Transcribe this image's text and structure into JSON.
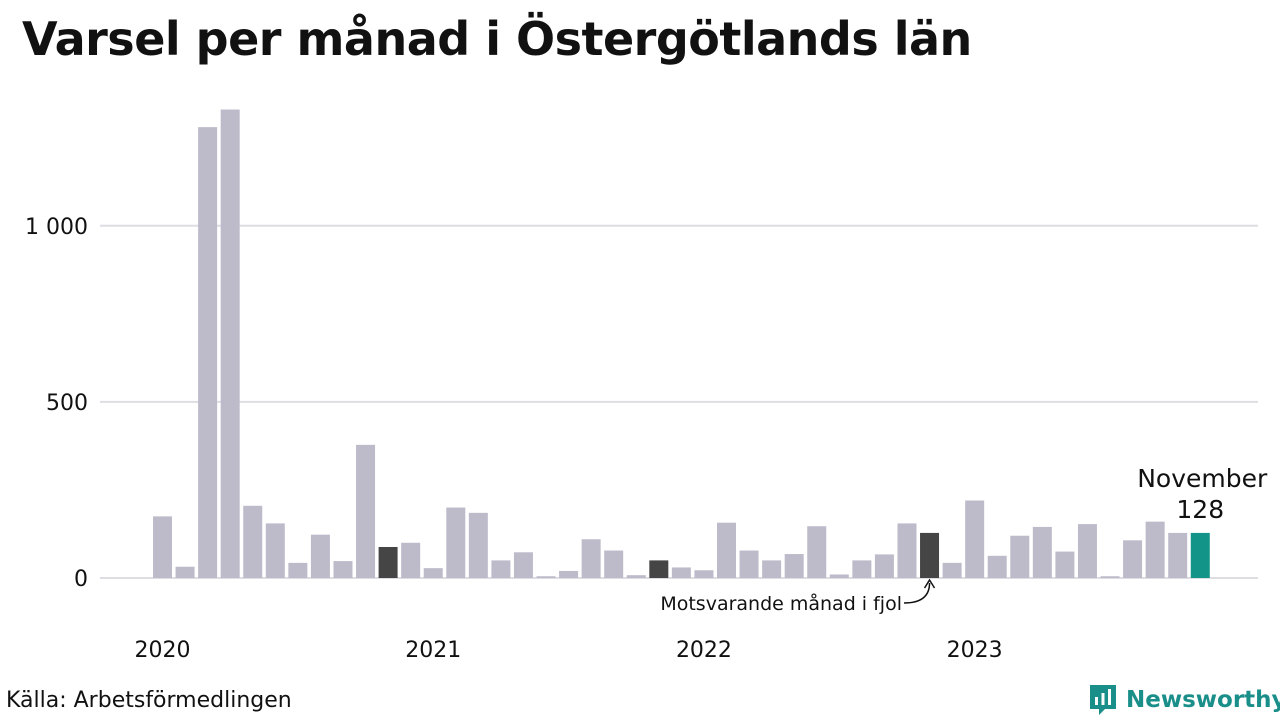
{
  "title": "Varsel per månad i Östergötlands län",
  "source": "Källa: Arbetsförmedlingen",
  "logo": {
    "text": "Newsworthy",
    "icon": "bar-chart-badge-icon",
    "color": "#1a8f8a"
  },
  "colors": {
    "default": "#bdbbca",
    "highlight": "#454545",
    "current": "#139488",
    "grid": "#dddde3"
  },
  "chart_data": {
    "type": "bar",
    "title": "Varsel per månad i Östergötlands län",
    "xlabel": "",
    "ylabel": "",
    "ylim": [
      0,
      1340
    ],
    "yticks": [
      0,
      500,
      1000
    ],
    "ytick_labels": [
      "0",
      "500",
      "1 000"
    ],
    "grid": true,
    "year_labels": [
      {
        "label": "2020",
        "index": 0
      },
      {
        "label": "2021",
        "index": 12
      },
      {
        "label": "2022",
        "index": 24
      },
      {
        "label": "2023",
        "index": 36
      }
    ],
    "values": [
      175,
      32,
      1280,
      1330,
      205,
      155,
      43,
      123,
      48,
      378,
      88,
      100,
      28,
      200,
      185,
      50,
      73,
      5,
      20,
      110,
      78,
      8,
      50,
      30,
      22,
      157,
      78,
      50,
      68,
      147,
      10,
      50,
      67,
      155,
      128,
      43,
      220,
      63,
      120,
      145,
      75,
      153,
      5,
      107,
      160,
      128,
      128
    ],
    "highlight_indices": [
      10,
      22,
      34
    ],
    "current_index": 46,
    "annotation_current": {
      "label": "November",
      "value": "128"
    },
    "annotation_previous": {
      "label": "Motsvarande månad i fjol"
    }
  }
}
